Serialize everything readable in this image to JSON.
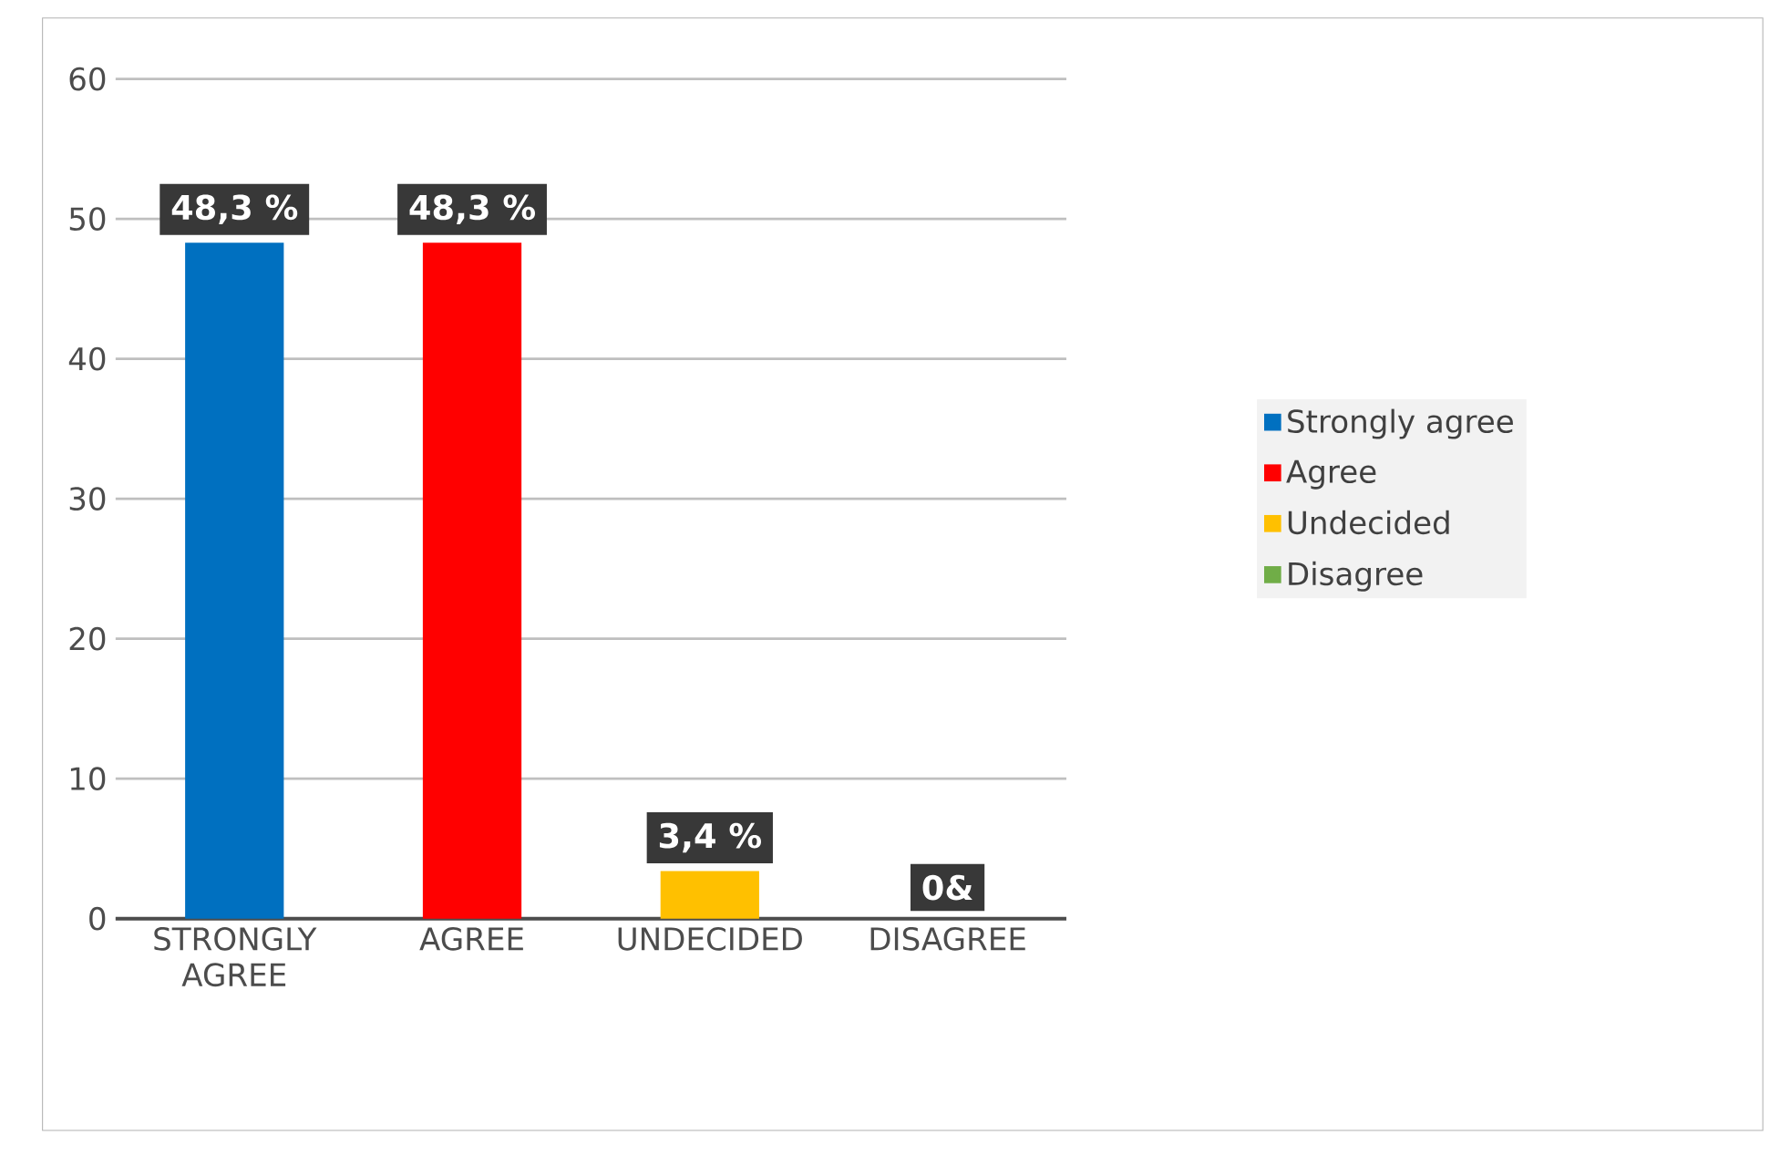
{
  "chart_data": {
    "type": "bar",
    "categories": [
      "STRONGLY AGREE",
      "AGREE",
      "UNDECIDED",
      "DISAGREE"
    ],
    "series": [
      {
        "name": "Strongly agree",
        "color": "#0070c0",
        "values": [
          48.3,
          null,
          null,
          null
        ],
        "value_labels": [
          "48,3 %",
          null,
          null,
          null
        ]
      },
      {
        "name": "Agree",
        "color": "#ff0000",
        "values": [
          null,
          48.3,
          null,
          null
        ],
        "value_labels": [
          null,
          "48,3 %",
          null,
          null
        ]
      },
      {
        "name": "Undecided",
        "color": "#ffc000",
        "values": [
          null,
          null,
          3.4,
          null
        ],
        "value_labels": [
          null,
          null,
          "3,4 %",
          null
        ]
      },
      {
        "name": "Disagree",
        "color": "#70ad47",
        "values": [
          null,
          null,
          null,
          0
        ],
        "value_labels": [
          null,
          null,
          null,
          "0&"
        ]
      }
    ],
    "ylim": [
      0,
      60
    ],
    "yticks": [
      0,
      10,
      20,
      30,
      40,
      50,
      60
    ],
    "grid": "y",
    "legend": "right"
  }
}
